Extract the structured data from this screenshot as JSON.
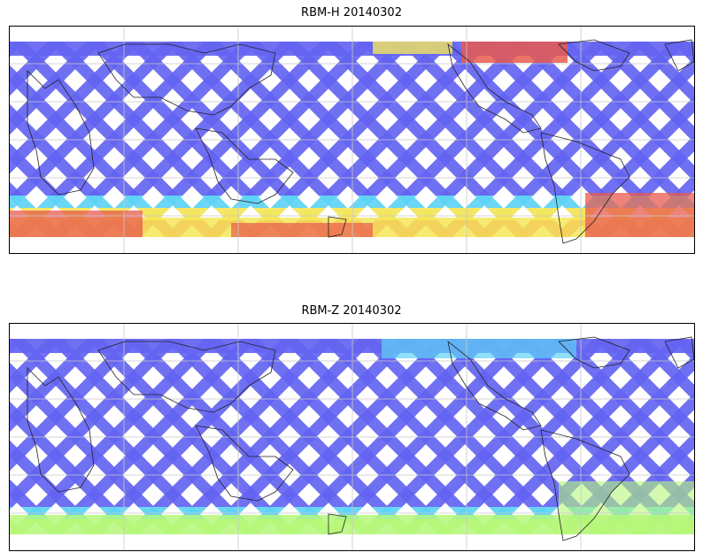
{
  "panels": [
    {
      "title": "RBM-H 20140302",
      "colors": {
        "low": "#6464f2",
        "mid": "#5fd3f5",
        "midhigh": "#b6f77a",
        "high": "#f4e65a",
        "peak": "#e85a4f"
      }
    },
    {
      "title": "RBM-Z 20140302",
      "colors": {
        "low": "#6464f2",
        "mid": "#5fd3f5",
        "midhigh": "#b6f77a",
        "high": "#f4e65a",
        "peak": "#e85a4f"
      }
    }
  ]
}
